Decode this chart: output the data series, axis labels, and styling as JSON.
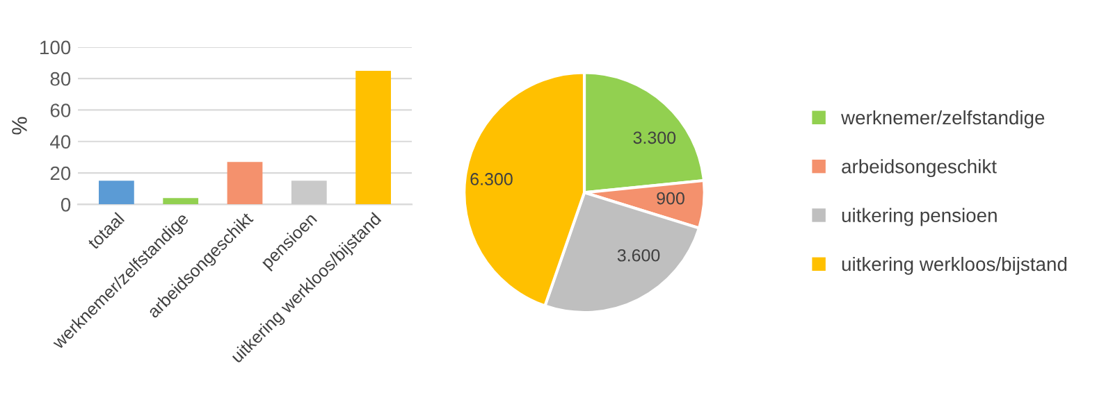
{
  "chart_data": [
    {
      "type": "bar",
      "ylabel": "%",
      "categories": [
        "totaal",
        "werknemer/zelfstandige",
        "arbeidsongeschikt",
        "pensioen",
        "uitkering werkloos/bijstand"
      ],
      "values": [
        15,
        4,
        27,
        15,
        85
      ],
      "colors": [
        "#5b9bd5",
        "#92d050",
        "#f4916d",
        "#c9c9c9",
        "#ffc000"
      ],
      "ylim": [
        0,
        100
      ],
      "yticks": [
        0,
        20,
        40,
        60,
        80,
        100
      ],
      "grid": "y",
      "legend": false
    },
    {
      "type": "pie",
      "categories": [
        "werknemer/zelfstandige",
        "arbeidsongeschikt",
        "uitkering pensioen",
        "uitkering werkloos/bijstand"
      ],
      "values": [
        3300,
        900,
        3600,
        6300
      ],
      "value_labels": [
        "3.300",
        "900",
        "3.600",
        "6.300"
      ],
      "colors": [
        "#92d050",
        "#f4916d",
        "#bfbfbf",
        "#ffc000"
      ],
      "legend": "right"
    }
  ]
}
